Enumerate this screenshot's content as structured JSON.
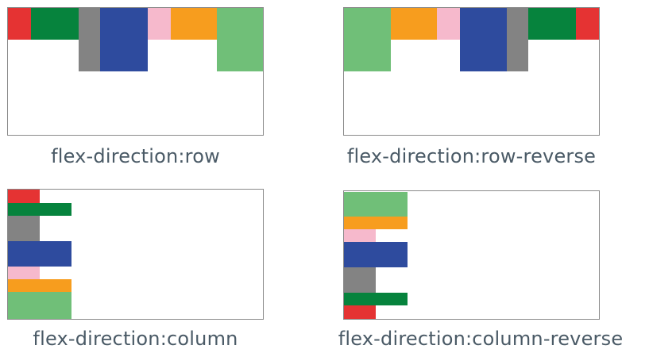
{
  "colors": {
    "red": "#e53333",
    "green": "#06833d",
    "gray": "#838383",
    "blue": "#2e4b9e",
    "pink": "#f6b9cc",
    "orange": "#f79d1e",
    "lightgreen": "#70bf78"
  },
  "item_order": [
    "red",
    "green",
    "gray",
    "blue",
    "pink",
    "orange",
    "lightgreen"
  ],
  "diagrams": [
    {
      "direction": "row",
      "caption": "flex-direction:row"
    },
    {
      "direction": "row-reverse",
      "caption": "flex-direction:row-reverse"
    },
    {
      "direction": "column",
      "caption": "flex-direction:column"
    },
    {
      "direction": "column-reverse",
      "caption": "flex-direction:column-reverse"
    }
  ]
}
